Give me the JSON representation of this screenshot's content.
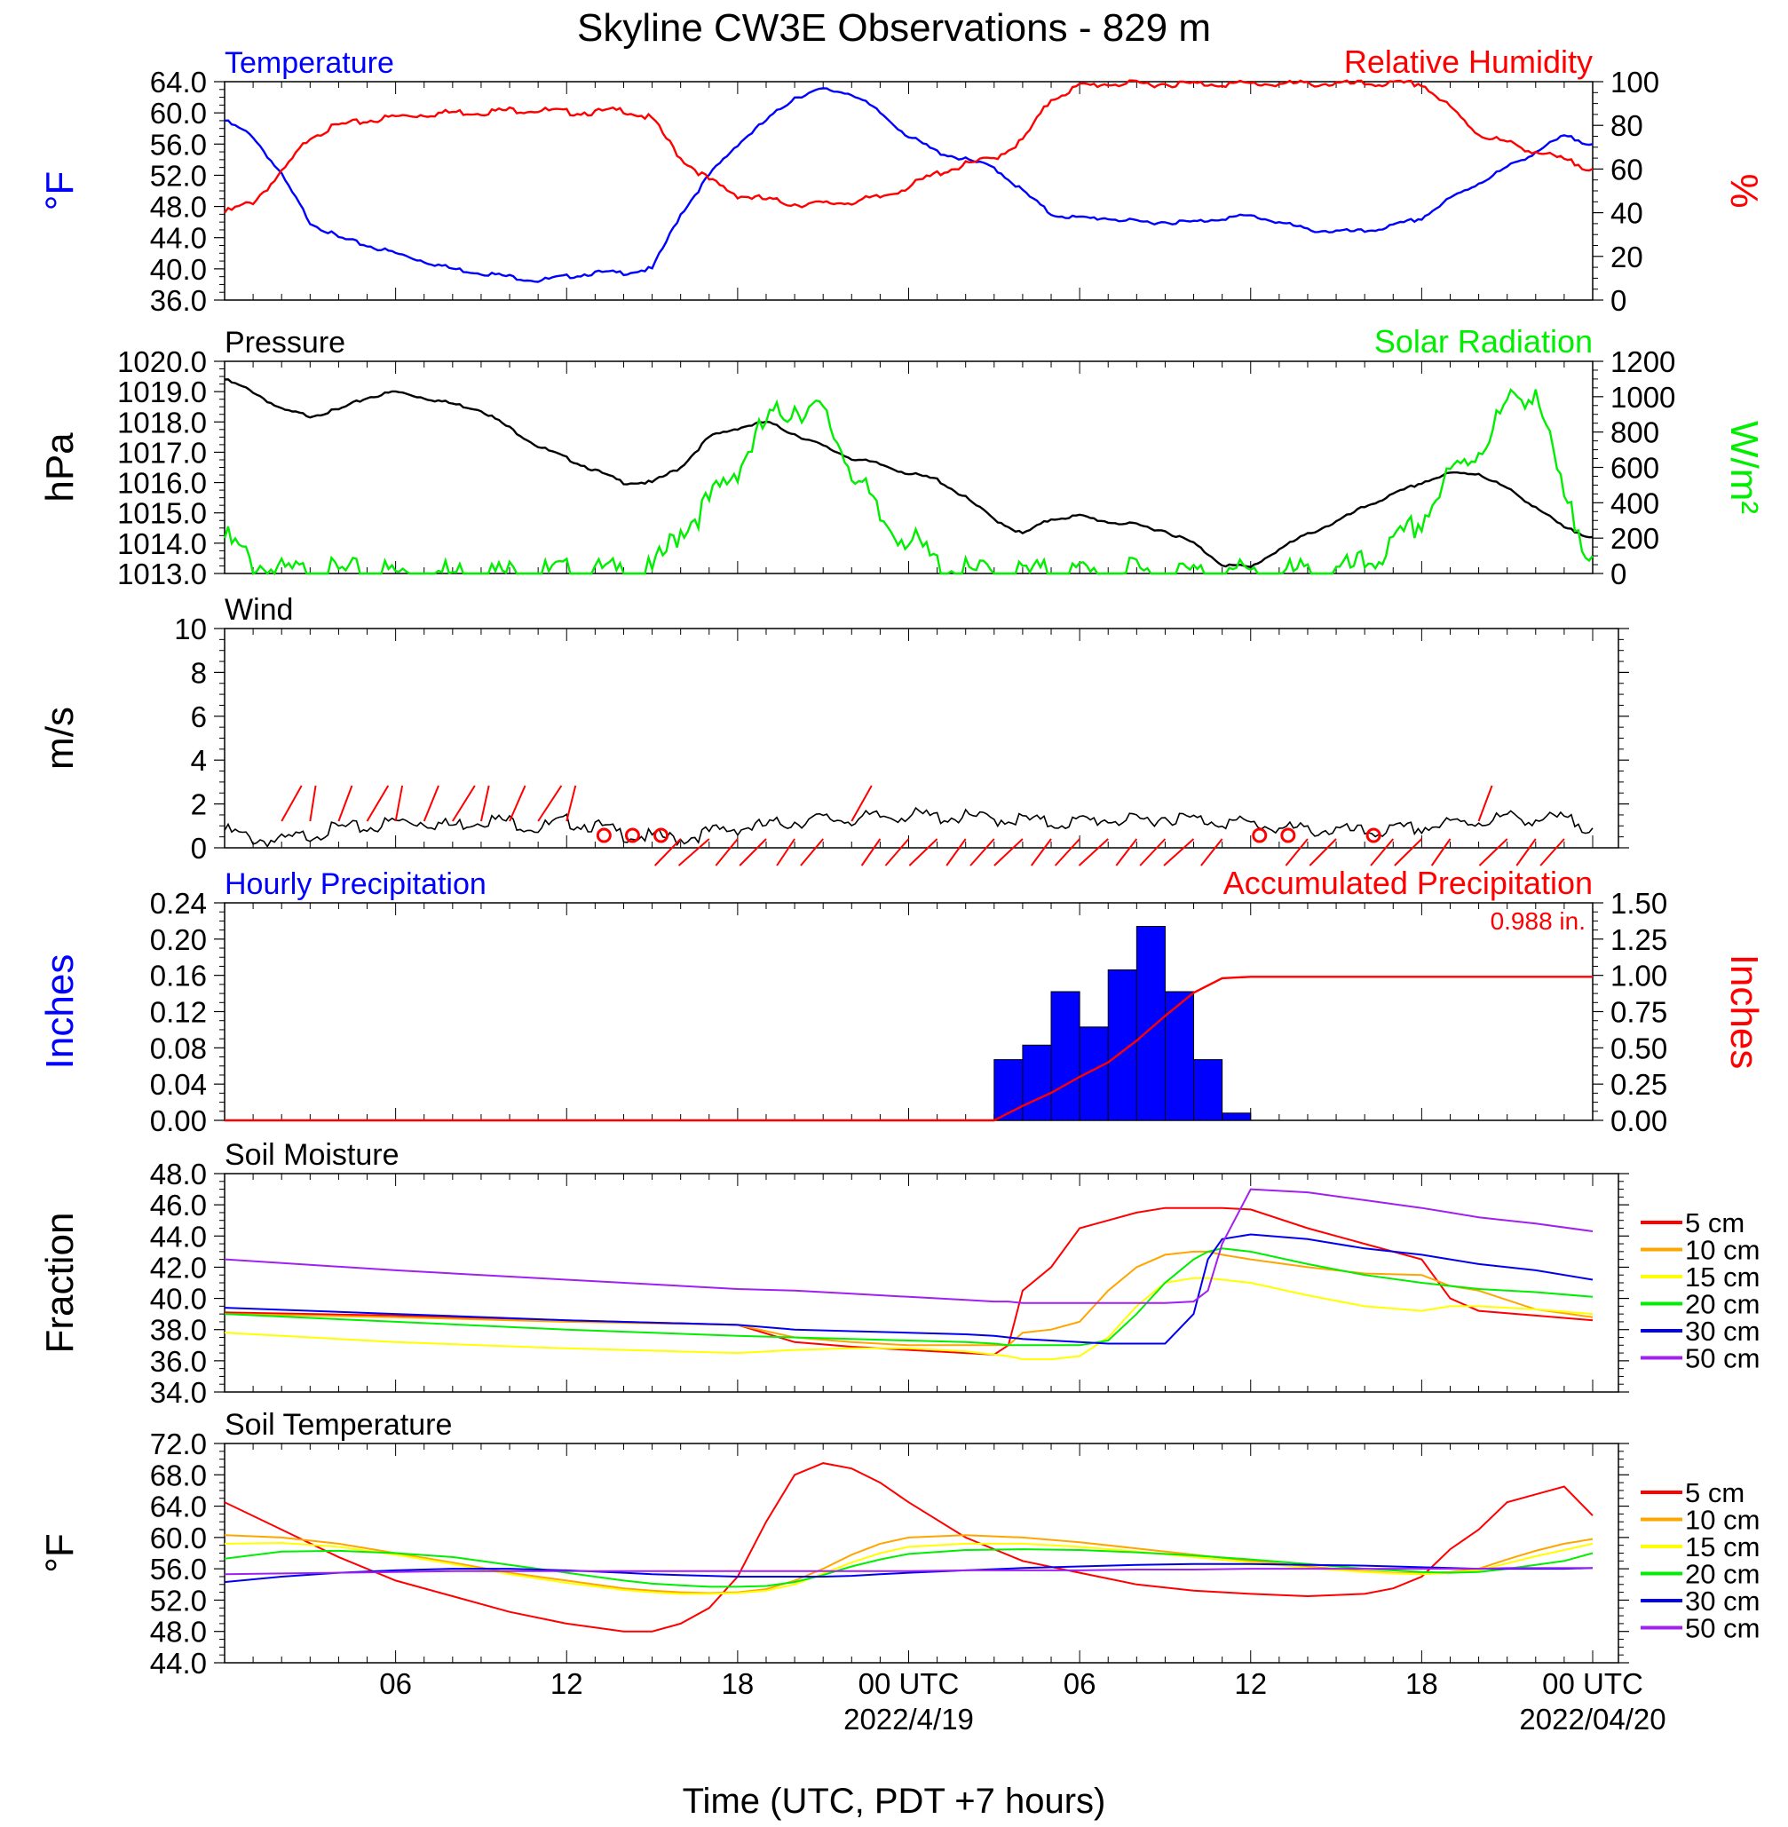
{
  "title": "Skyline CW3E Observations - 829 m",
  "xlabel": "Time (UTC, PDT +7 hours)",
  "x_ticks": [
    {
      "h": 6,
      "label": "06",
      "sub": ""
    },
    {
      "h": 12,
      "label": "12",
      "sub": ""
    },
    {
      "h": 18,
      "label": "18",
      "sub": ""
    },
    {
      "h": 24,
      "label": "00 UTC",
      "sub": "2022/4/19"
    },
    {
      "h": 30,
      "label": "06",
      "sub": ""
    },
    {
      "h": 36,
      "label": "12",
      "sub": ""
    },
    {
      "h": 42,
      "label": "18",
      "sub": ""
    },
    {
      "h": 48,
      "label": "00 UTC",
      "sub": "2022/04/20"
    }
  ],
  "colors": {
    "temperature": "#0000ff",
    "humidity": "#ff0000",
    "pressure": "#000000",
    "solar": "#00ee00",
    "wind": "#000000",
    "barbs": "#ff0000",
    "hourly": "#0000ff",
    "accum": "#ff0000"
  },
  "soil_colors": {
    "5 cm": "#ff0000",
    "10 cm": "#ffa500",
    "15 cm": "#ffff00",
    "20 cm": "#00ee00",
    "30 cm": "#0000ee",
    "50 cm": "#a020f0"
  },
  "chart_data": [
    {
      "id": "temp_rh",
      "type": "line",
      "title_left": "Temperature",
      "title_right": "Relative Humidity",
      "ylabel_left": "°F",
      "ylabel_right": "%",
      "ylim_left": [
        36,
        64
      ],
      "yticks_left": [
        "36.0",
        "40.0",
        "44.0",
        "48.0",
        "52.0",
        "56.0",
        "60.0",
        "64.0"
      ],
      "ylim_right": [
        0,
        100
      ],
      "yticks_right": [
        "0",
        "20",
        "40",
        "60",
        "80",
        "100"
      ],
      "x_hours": [
        0,
        1,
        2,
        3,
        4,
        5,
        6,
        7,
        8,
        9,
        10,
        11,
        12,
        13,
        14,
        15,
        16,
        17,
        18,
        19,
        20,
        21,
        22,
        23,
        24,
        25,
        26,
        27,
        28,
        29,
        30,
        31,
        32,
        33,
        34,
        35,
        36,
        37,
        38,
        39,
        40,
        41,
        42,
        43,
        44,
        45,
        46,
        47,
        48
      ],
      "series": [
        {
          "name": "Temperature",
          "axis": "left",
          "values": [
            59,
            57,
            52,
            46,
            44,
            43,
            42,
            41,
            40,
            39.5,
            39,
            38.5,
            39,
            39.5,
            39.5,
            40,
            47,
            52,
            56,
            59,
            62,
            63,
            62.5,
            60,
            57,
            55,
            54,
            53,
            50,
            47,
            46.5,
            46.5,
            46,
            46,
            46,
            46.5,
            46.8,
            46,
            45,
            44.8,
            44.8,
            45.5,
            46.5,
            49,
            51,
            53,
            55,
            57,
            56
          ]
        },
        {
          "name": "Relative Humidity",
          "axis": "right",
          "values": [
            40,
            45,
            58,
            75,
            80,
            82,
            84,
            85,
            86,
            86,
            87,
            87,
            86,
            86,
            87,
            83,
            65,
            55,
            48,
            46,
            44,
            44,
            45,
            47,
            52,
            58,
            62,
            65,
            73,
            92,
            98,
            99,
            99,
            99,
            99,
            99,
            99,
            99,
            99,
            99,
            99,
            99,
            99,
            88,
            76,
            72,
            68,
            64,
            60
          ]
        }
      ]
    },
    {
      "id": "pressure_solar",
      "type": "line",
      "title_left": "Pressure",
      "title_right": "Solar Radiation",
      "ylabel_left": "hPa",
      "ylabel_right": "W/m²",
      "ylim_left": [
        1013,
        1020
      ],
      "yticks_left": [
        "1013.0",
        "1014.0",
        "1015.0",
        "1016.0",
        "1017.0",
        "1018.0",
        "1019.0",
        "1020.0"
      ],
      "ylim_right": [
        0,
        1200
      ],
      "yticks_right": [
        "0",
        "200",
        "400",
        "600",
        "800",
        "1000",
        "1200"
      ],
      "x_hours": [
        0,
        1,
        2,
        3,
        4,
        5,
        6,
        7,
        8,
        9,
        10,
        11,
        12,
        13,
        14,
        15,
        16,
        17,
        18,
        19,
        20,
        21,
        22,
        23,
        24,
        25,
        26,
        27,
        28,
        29,
        30,
        31,
        32,
        33,
        34,
        35,
        36,
        37,
        38,
        39,
        40,
        41,
        42,
        43,
        44,
        45,
        46,
        47,
        48
      ],
      "series": [
        {
          "name": "Pressure",
          "axis": "left",
          "values": [
            1019.4,
            1019,
            1018.4,
            1018.2,
            1018.4,
            1018.8,
            1019,
            1018.8,
            1018.6,
            1018.4,
            1017.8,
            1017.2,
            1016.8,
            1016.4,
            1016,
            1016,
            1016.5,
            1017.5,
            1017.8,
            1018,
            1017.6,
            1017.2,
            1016.8,
            1016.6,
            1016.3,
            1016.1,
            1015.5,
            1014.8,
            1014.3,
            1014.8,
            1014.9,
            1014.7,
            1014.6,
            1014.4,
            1014,
            1013.3,
            1013.2,
            1013.8,
            1014.3,
            1014.7,
            1015.2,
            1015.6,
            1016,
            1016.3,
            1016.3,
            1015.8,
            1015.2,
            1014.5,
            1014.2
          ]
        },
        {
          "name": "Solar Radiation",
          "axis": "right",
          "values": [
            200,
            60,
            0,
            0,
            0,
            0,
            0,
            0,
            0,
            0,
            0,
            0,
            0,
            0,
            0,
            0,
            250,
            400,
            600,
            850,
            950,
            900,
            600,
            300,
            200,
            50,
            0,
            0,
            0,
            0,
            0,
            0,
            0,
            0,
            0,
            0,
            0,
            0,
            0,
            0,
            50,
            150,
            300,
            550,
            700,
            950,
            1050,
            400,
            100
          ]
        }
      ]
    },
    {
      "id": "wind",
      "type": "line",
      "title_left": "Wind",
      "ylabel_left": "m/s",
      "ylim_left": [
        0,
        10
      ],
      "yticks_left": [
        "0",
        "2",
        "4",
        "6",
        "8",
        "10"
      ],
      "x_hours": [
        0,
        1,
        2,
        3,
        4,
        5,
        6,
        7,
        8,
        9,
        10,
        11,
        12,
        13,
        14,
        15,
        16,
        17,
        18,
        19,
        20,
        21,
        22,
        23,
        24,
        25,
        26,
        27,
        28,
        29,
        30,
        31,
        32,
        33,
        34,
        35,
        36,
        37,
        38,
        39,
        40,
        41,
        42,
        43,
        44,
        45,
        46,
        47,
        48
      ],
      "series": [
        {
          "name": "Wind",
          "axis": "left",
          "values": [
            0.8,
            0.4,
            0.3,
            0.6,
            0.9,
            0.9,
            1.2,
            1.2,
            1.0,
            1.3,
            1.2,
            0.9,
            1.2,
            1.0,
            0.6,
            0.5,
            0.4,
            0.7,
            0.9,
            1.0,
            1.2,
            1.3,
            1.3,
            1.4,
            1.5,
            1.4,
            1.4,
            1.3,
            1.3,
            1.1,
            1.2,
            1.3,
            1.2,
            1.4,
            1.3,
            1.2,
            1.1,
            0.9,
            0.8,
            0.8,
            0.7,
            0.8,
            0.9,
            1.1,
            1.2,
            1.4,
            1.3,
            1.3,
            0.9
          ]
        }
      ]
    },
    {
      "id": "precip",
      "type": "bar",
      "title_left": "Hourly Precipitation",
      "title_right": "Accumulated Precipitation",
      "accum_total": "0.988 in.",
      "ylabel_left": "Inches",
      "ylabel_right": "Inches",
      "ylim_left": [
        0,
        0.24
      ],
      "yticks_left": [
        "0.00",
        "0.04",
        "0.08",
        "0.12",
        "0.16",
        "0.20",
        "0.24"
      ],
      "ylim_right": [
        0,
        1.5
      ],
      "yticks_right": [
        "0.00",
        "0.25",
        "0.50",
        "0.75",
        "1.00",
        "1.25",
        "1.50"
      ],
      "hourly_bars": [
        {
          "start": 27,
          "value": 0.067
        },
        {
          "start": 28,
          "value": 0.083
        },
        {
          "start": 29,
          "value": 0.142
        },
        {
          "start": 30,
          "value": 0.103
        },
        {
          "start": 31,
          "value": 0.166
        },
        {
          "start": 32,
          "value": 0.214
        },
        {
          "start": 33,
          "value": 0.142
        },
        {
          "start": 34,
          "value": 0.067
        },
        {
          "start": 35,
          "value": 0.008
        }
      ],
      "accum_x": [
        0,
        27,
        28,
        29,
        30,
        31,
        32,
        33,
        34,
        35,
        36,
        48
      ],
      "accum_values": [
        0,
        0,
        0.1,
        0.19,
        0.3,
        0.4,
        0.55,
        0.72,
        0.88,
        0.98,
        0.99,
        0.99
      ]
    },
    {
      "id": "soil_moisture",
      "type": "line",
      "title_left": "Soil Moisture",
      "ylabel_left": "Fraction",
      "ylim_left": [
        34,
        48
      ],
      "yticks_left": [
        "34.0",
        "36.0",
        "38.0",
        "40.0",
        "42.0",
        "44.0",
        "46.0",
        "48.0"
      ],
      "x_hours": [
        0,
        6,
        12,
        18,
        20,
        22,
        24,
        26,
        27,
        27.5,
        28,
        29,
        30,
        31,
        32,
        33,
        34,
        34.5,
        35,
        36,
        38,
        40,
        42,
        43,
        44,
        46,
        48
      ],
      "series": [
        {
          "name": "5 cm",
          "values": [
            39.1,
            38.9,
            38.6,
            38.3,
            37.2,
            36.9,
            36.7,
            36.5,
            36.4,
            37.0,
            40.5,
            42.0,
            44.5,
            45.0,
            45.5,
            45.8,
            45.8,
            45.8,
            45.8,
            45.7,
            44.5,
            43.5,
            42.5,
            40.0,
            39.2,
            38.9,
            38.6
          ]
        },
        {
          "name": "10 cm",
          "values": [
            39.0,
            38.8,
            38.5,
            38.3,
            37.5,
            37.2,
            37.0,
            37.0,
            37.0,
            37.0,
            37.8,
            38.0,
            38.5,
            40.5,
            42.0,
            42.8,
            43.0,
            43.0,
            42.8,
            42.5,
            42.0,
            41.6,
            41.5,
            40.8,
            40.5,
            39.3,
            38.8
          ]
        },
        {
          "name": "15 cm",
          "values": [
            37.8,
            37.2,
            36.8,
            36.5,
            36.7,
            36.8,
            36.8,
            36.6,
            36.4,
            36.3,
            36.1,
            36.1,
            36.3,
            37.5,
            39.5,
            41.0,
            41.3,
            41.3,
            41.2,
            41.0,
            40.2,
            39.5,
            39.2,
            39.5,
            39.5,
            39.3,
            39.0
          ]
        },
        {
          "name": "20 cm",
          "values": [
            39.0,
            38.5,
            38.0,
            37.6,
            37.5,
            37.4,
            37.3,
            37.2,
            37.1,
            37.0,
            37.0,
            37.0,
            37.0,
            37.3,
            39.0,
            41.0,
            42.5,
            43.0,
            43.2,
            43.0,
            42.2,
            41.5,
            41.0,
            40.8,
            40.6,
            40.4,
            40.1
          ]
        },
        {
          "name": "30 cm",
          "values": [
            39.4,
            39.0,
            38.6,
            38.3,
            38.0,
            37.9,
            37.8,
            37.7,
            37.6,
            37.5,
            37.4,
            37.3,
            37.2,
            37.1,
            37.1,
            37.1,
            39.0,
            42.5,
            43.8,
            44.1,
            43.8,
            43.2,
            42.8,
            42.5,
            42.2,
            41.8,
            41.2
          ]
        },
        {
          "name": "50 cm",
          "values": [
            42.5,
            41.8,
            41.2,
            40.6,
            40.5,
            40.3,
            40.1,
            39.9,
            39.8,
            39.8,
            39.7,
            39.7,
            39.7,
            39.7,
            39.7,
            39.7,
            39.8,
            40.5,
            43.5,
            47.0,
            46.8,
            46.3,
            45.8,
            45.5,
            45.2,
            44.8,
            44.3
          ]
        }
      ]
    },
    {
      "id": "soil_temperature",
      "type": "line",
      "title_left": "Soil Temperature",
      "ylabel_left": "°F",
      "ylim_left": [
        44,
        72
      ],
      "yticks_left": [
        "44.0",
        "48.0",
        "52.0",
        "56.0",
        "60.0",
        "64.0",
        "68.0",
        "72.0"
      ],
      "x_hours": [
        0,
        2,
        4,
        6,
        8,
        10,
        12,
        14,
        15,
        16,
        17,
        18,
        19,
        20,
        21,
        22,
        23,
        24,
        26,
        28,
        30,
        32,
        34,
        36,
        38,
        40,
        41,
        42,
        43,
        44,
        45,
        46,
        47,
        48
      ],
      "series": [
        {
          "name": "5 cm",
          "values": [
            64.5,
            61.0,
            57.5,
            54.5,
            52.5,
            50.5,
            49.0,
            48.0,
            48.0,
            49.0,
            51.0,
            55.0,
            62.0,
            68.0,
            69.5,
            68.8,
            67.0,
            64.5,
            60.0,
            57.0,
            55.5,
            54.0,
            53.2,
            52.8,
            52.5,
            52.8,
            53.5,
            55.0,
            58.5,
            61.0,
            64.5,
            65.5,
            66.5,
            62.8
          ]
        },
        {
          "name": "10 cm",
          "values": [
            60.3,
            60.0,
            59.2,
            58.0,
            56.8,
            55.5,
            54.5,
            53.5,
            53.2,
            53.0,
            52.9,
            53.0,
            53.4,
            54.5,
            56.0,
            57.8,
            59.2,
            60.0,
            60.3,
            60.0,
            59.4,
            58.6,
            57.8,
            57.0,
            56.3,
            55.7,
            55.5,
            55.4,
            55.6,
            56.0,
            57.2,
            58.3,
            59.2,
            59.8
          ]
        },
        {
          "name": "15 cm",
          "values": [
            59.2,
            59.3,
            58.8,
            57.8,
            56.6,
            55.3,
            54.2,
            53.3,
            53.0,
            52.8,
            52.8,
            52.9,
            53.2,
            54.0,
            55.4,
            56.8,
            58.0,
            58.8,
            59.2,
            59.2,
            58.8,
            58.2,
            57.5,
            56.8,
            56.1,
            55.6,
            55.4,
            55.3,
            55.5,
            55.8,
            56.7,
            57.6,
            58.4,
            59.2
          ]
        },
        {
          "name": "20 cm",
          "values": [
            57.3,
            58.2,
            58.3,
            58.0,
            57.5,
            56.5,
            55.5,
            54.5,
            54.1,
            53.9,
            53.7,
            53.7,
            53.8,
            54.3,
            55.2,
            56.3,
            57.2,
            57.9,
            58.4,
            58.5,
            58.4,
            58.1,
            57.7,
            57.2,
            56.6,
            56.0,
            55.8,
            55.6,
            55.5,
            55.6,
            56.0,
            56.5,
            57.0,
            58.0
          ]
        },
        {
          "name": "30 cm",
          "values": [
            54.3,
            55.0,
            55.5,
            55.8,
            56.0,
            56.0,
            55.8,
            55.5,
            55.3,
            55.2,
            55.1,
            55.0,
            55.0,
            55.0,
            55.0,
            55.1,
            55.3,
            55.5,
            55.8,
            56.1,
            56.3,
            56.5,
            56.6,
            56.6,
            56.5,
            56.4,
            56.3,
            56.2,
            56.1,
            56.0,
            56.0,
            56.0,
            56.0,
            56.1
          ]
        },
        {
          "name": "50 cm",
          "values": [
            55.3,
            55.4,
            55.5,
            55.6,
            55.7,
            55.7,
            55.7,
            55.7,
            55.7,
            55.7,
            55.7,
            55.7,
            55.7,
            55.7,
            55.7,
            55.7,
            55.7,
            55.7,
            55.8,
            55.8,
            55.8,
            55.9,
            55.9,
            56.0,
            56.0,
            56.0,
            56.0,
            56.0,
            56.0,
            56.0,
            56.1,
            56.1,
            56.1,
            56.1
          ]
        }
      ]
    }
  ]
}
